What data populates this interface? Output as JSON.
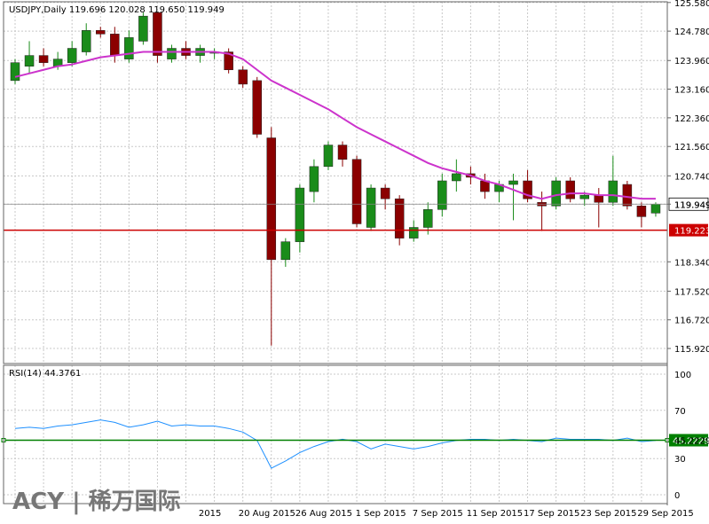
{
  "header": {
    "symbol_line": "USDJPY,Daily  119.696 120.028 119.650 119.949",
    "rsi_line": "RSI(14) 44.3761"
  },
  "logo": {
    "text": "ACY | 稀万国际"
  },
  "price_labels": {
    "current": "119.949",
    "support": "119.223",
    "rsi_current": "45.2229"
  },
  "colors": {
    "bull": "#1a8c1a",
    "bear": "#8b0000",
    "ma": "#cc33cc",
    "rsi": "#1e90ff",
    "hline_support": "#cc0000",
    "hline_rsi": "#008000"
  },
  "chart_data": [
    {
      "type": "candlestick",
      "title": "USDJPY,Daily",
      "ylim": [
        115.5,
        125.6
      ],
      "y_ticks": [
        "125.580",
        "124.780",
        "123.960",
        "123.160",
        "122.360",
        "121.560",
        "120.740",
        "119.949",
        "118.340",
        "117.520",
        "116.720",
        "115.920"
      ],
      "y_tick_values": [
        125.58,
        124.78,
        123.96,
        123.16,
        122.36,
        121.56,
        120.74,
        119.949,
        118.34,
        117.52,
        116.72,
        115.92
      ],
      "x_tick_labels": [
        "2015",
        "20 Aug 2015",
        "26 Aug 2015",
        "1 Sep 2015",
        "7 Sep 2015",
        "11 Sep 2015",
        "17 Sep 2015",
        "23 Sep 2015",
        "29 Sep 2015"
      ],
      "x_tick_index": [
        14,
        18,
        22,
        26,
        30,
        34,
        38,
        42,
        46
      ],
      "candles": [
        {
          "o": 123.4,
          "h": 124.0,
          "l": 123.3,
          "c": 123.9
        },
        {
          "o": 123.8,
          "h": 124.5,
          "l": 123.6,
          "c": 124.1
        },
        {
          "o": 124.1,
          "h": 124.3,
          "l": 123.8,
          "c": 123.9
        },
        {
          "o": 123.8,
          "h": 124.2,
          "l": 123.7,
          "c": 124.0
        },
        {
          "o": 123.9,
          "h": 124.5,
          "l": 123.8,
          "c": 124.3
        },
        {
          "o": 124.2,
          "h": 125.0,
          "l": 124.1,
          "c": 124.8
        },
        {
          "o": 124.8,
          "h": 124.9,
          "l": 124.6,
          "c": 124.7
        },
        {
          "o": 124.7,
          "h": 124.9,
          "l": 123.9,
          "c": 124.1
        },
        {
          "o": 124.0,
          "h": 124.8,
          "l": 123.9,
          "c": 124.6
        },
        {
          "o": 124.5,
          "h": 125.3,
          "l": 124.4,
          "c": 125.2
        },
        {
          "o": 125.3,
          "h": 125.3,
          "l": 123.9,
          "c": 124.1
        },
        {
          "o": 124.0,
          "h": 124.4,
          "l": 123.9,
          "c": 124.3
        },
        {
          "o": 124.3,
          "h": 124.5,
          "l": 124.0,
          "c": 124.1
        },
        {
          "o": 124.1,
          "h": 124.4,
          "l": 123.9,
          "c": 124.3
        },
        {
          "o": 124.2,
          "h": 124.3,
          "l": 124.0,
          "c": 124.2
        },
        {
          "o": 124.2,
          "h": 124.3,
          "l": 123.6,
          "c": 123.7
        },
        {
          "o": 123.7,
          "h": 123.8,
          "l": 123.2,
          "c": 123.3
        },
        {
          "o": 123.4,
          "h": 123.5,
          "l": 121.8,
          "c": 121.9
        },
        {
          "o": 121.8,
          "h": 122.1,
          "l": 116.0,
          "c": 118.4
        },
        {
          "o": 118.4,
          "h": 119.0,
          "l": 118.2,
          "c": 118.9
        },
        {
          "o": 118.9,
          "h": 120.5,
          "l": 118.6,
          "c": 120.4
        },
        {
          "o": 120.3,
          "h": 121.2,
          "l": 120.0,
          "c": 121.0
        },
        {
          "o": 121.0,
          "h": 121.7,
          "l": 120.9,
          "c": 121.6
        },
        {
          "o": 121.6,
          "h": 121.7,
          "l": 121.0,
          "c": 121.2
        },
        {
          "o": 121.2,
          "h": 121.3,
          "l": 119.3,
          "c": 119.4
        },
        {
          "o": 119.3,
          "h": 120.5,
          "l": 119.2,
          "c": 120.4
        },
        {
          "o": 120.4,
          "h": 120.5,
          "l": 119.8,
          "c": 120.1
        },
        {
          "o": 120.1,
          "h": 120.2,
          "l": 118.8,
          "c": 119.0
        },
        {
          "o": 119.0,
          "h": 119.5,
          "l": 118.9,
          "c": 119.3
        },
        {
          "o": 119.3,
          "h": 120.0,
          "l": 119.1,
          "c": 119.8
        },
        {
          "o": 119.8,
          "h": 120.8,
          "l": 119.6,
          "c": 120.6
        },
        {
          "o": 120.6,
          "h": 121.2,
          "l": 120.3,
          "c": 120.8
        },
        {
          "o": 120.8,
          "h": 121.0,
          "l": 120.5,
          "c": 120.7
        },
        {
          "o": 120.6,
          "h": 120.8,
          "l": 120.1,
          "c": 120.3
        },
        {
          "o": 120.3,
          "h": 120.6,
          "l": 120.0,
          "c": 120.5
        },
        {
          "o": 120.5,
          "h": 120.8,
          "l": 119.5,
          "c": 120.6
        },
        {
          "o": 120.6,
          "h": 120.9,
          "l": 120.0,
          "c": 120.1
        },
        {
          "o": 120.0,
          "h": 120.3,
          "l": 119.2,
          "c": 119.9
        },
        {
          "o": 119.9,
          "h": 120.7,
          "l": 119.8,
          "c": 120.6
        },
        {
          "o": 120.6,
          "h": 120.7,
          "l": 120.0,
          "c": 120.1
        },
        {
          "o": 120.1,
          "h": 120.3,
          "l": 119.9,
          "c": 120.2
        },
        {
          "o": 120.2,
          "h": 120.4,
          "l": 119.3,
          "c": 120.0
        },
        {
          "o": 120.0,
          "h": 121.3,
          "l": 119.9,
          "c": 120.6
        },
        {
          "o": 120.5,
          "h": 120.6,
          "l": 119.8,
          "c": 119.9
        },
        {
          "o": 119.9,
          "h": 120.0,
          "l": 119.3,
          "c": 119.6
        },
        {
          "o": 119.7,
          "h": 120.0,
          "l": 119.6,
          "c": 119.95
        }
      ],
      "ma": [
        123.5,
        123.6,
        123.7,
        123.8,
        123.85,
        123.95,
        124.05,
        124.1,
        124.15,
        124.2,
        124.2,
        124.2,
        124.2,
        124.2,
        124.2,
        124.15,
        124.0,
        123.7,
        123.4,
        123.2,
        123.0,
        122.8,
        122.6,
        122.35,
        122.1,
        121.9,
        121.7,
        121.5,
        121.3,
        121.1,
        120.95,
        120.85,
        120.75,
        120.6,
        120.5,
        120.35,
        120.2,
        120.1,
        120.2,
        120.25,
        120.25,
        120.2,
        120.2,
        120.15,
        120.1,
        120.1
      ],
      "hlines": [
        {
          "value": 119.223,
          "label": "119.223"
        },
        {
          "value": 119.949,
          "label": "119.949"
        }
      ]
    },
    {
      "type": "line",
      "title": "RSI(14) 44.3761",
      "ylim": [
        0,
        100
      ],
      "y_ticks": [
        "100",
        "70",
        "45.2229",
        "30",
        "0"
      ],
      "y_tick_values": [
        100,
        70,
        45.2229,
        30,
        0
      ],
      "values": [
        55,
        56,
        55,
        57,
        58,
        60,
        62,
        60,
        56,
        58,
        61,
        57,
        58,
        57,
        57,
        55,
        52,
        45,
        22,
        28,
        35,
        40,
        44,
        46,
        44,
        38,
        42,
        40,
        38,
        40,
        43,
        45,
        46,
        46,
        45,
        46,
        45,
        44,
        47,
        46,
        46,
        46,
        45,
        47,
        44,
        45
      ],
      "hlines": [
        {
          "value": 45.2229,
          "label": "45.2229"
        }
      ]
    }
  ]
}
